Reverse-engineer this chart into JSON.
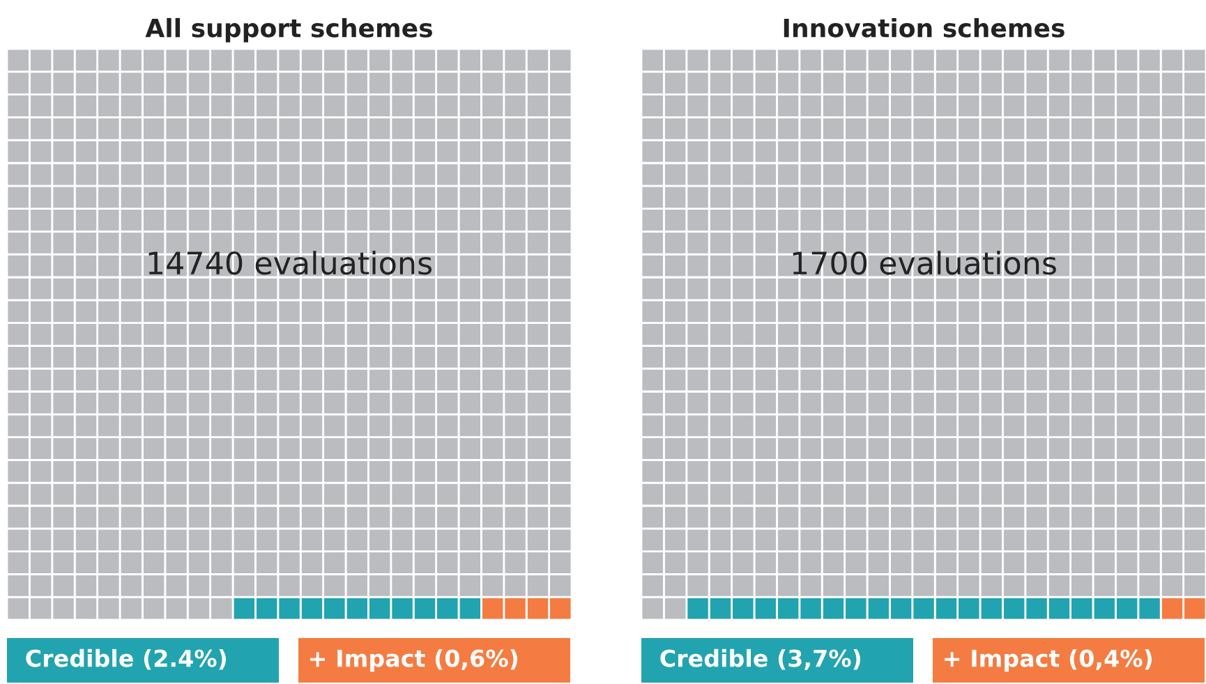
{
  "chart_data": [
    {
      "type": "other",
      "title": "All support schemes",
      "categories": [
        "Credible",
        "+ Impact"
      ],
      "values": [
        2.4,
        0.6
      ],
      "value_labels": [
        "(2.4%)",
        "(0,6%)"
      ],
      "colors": [
        "#22a3b0",
        "#f47c42"
      ],
      "annotations": [
        "14740 evaluations"
      ]
    },
    {
      "type": "other",
      "title": "Innovation schemes",
      "categories": [
        "Credible",
        "+ Impact"
      ],
      "values": [
        3.7,
        0.4
      ],
      "value_labels": [
        "(3,7%)",
        "(0,4%)"
      ],
      "colors": [
        "#22a3b0",
        "#f47c42"
      ],
      "annotations": [
        "1700 evaluations"
      ]
    }
  ]
}
